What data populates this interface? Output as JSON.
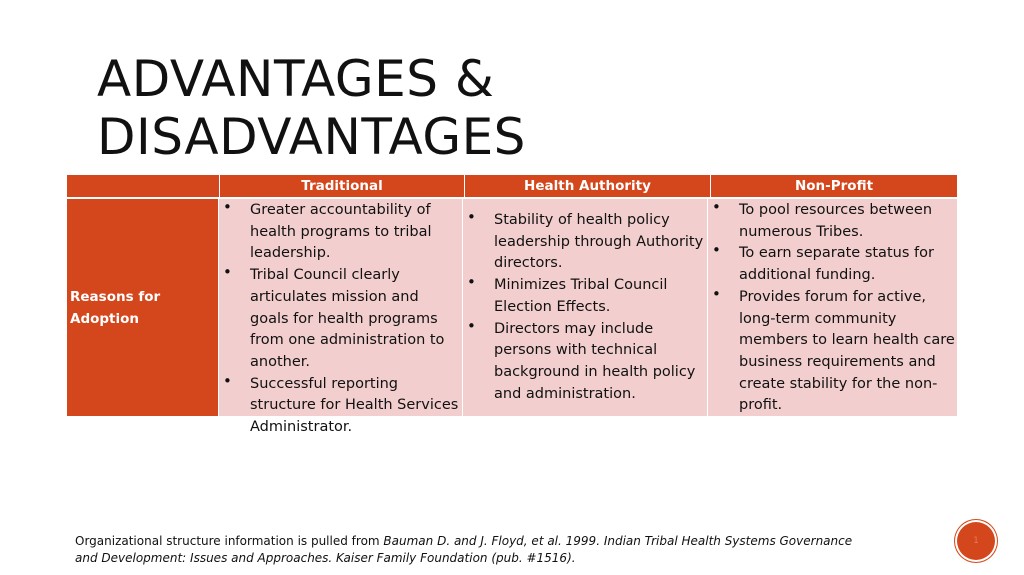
{
  "slide": {
    "title_line1": "ADVANTAGES &",
    "title_line2": "DISADVANTAGES",
    "page_number": "1"
  },
  "table": {
    "headers": [
      "",
      "Traditional",
      "Health Authority",
      "Non-Profit"
    ],
    "row_label": "Reasons for Adoption",
    "traditional": [
      "Greater accountability of health programs to tribal leadership.",
      "Tribal Council clearly articulates mission and goals for health programs from one administration to another.",
      "Successful reporting structure for Health Services Administrator."
    ],
    "health_authority": [
      "Stability of health policy leadership through Authority directors.",
      "Minimizes Tribal Council Election Effects.",
      "Directors may include persons with technical background in health policy and administration."
    ],
    "non_profit": [
      "To pool resources between numerous Tribes.",
      "To earn separate status for additional funding.",
      "Provides forum for active, long-term community members to learn health care business requirements and create stability for the non-profit."
    ]
  },
  "footnote": {
    "prefix": "Organizational structure information is pulled from ",
    "citation": "Bauman D. and J. Floyd, et al. 1999. Indian Tribal Health Systems Governance and Development: Issues and Approaches. Kaiser Family Foundation (pub. #1516)."
  },
  "colors": {
    "accent": "#d4461b",
    "cell_background": "#f2cfce"
  }
}
